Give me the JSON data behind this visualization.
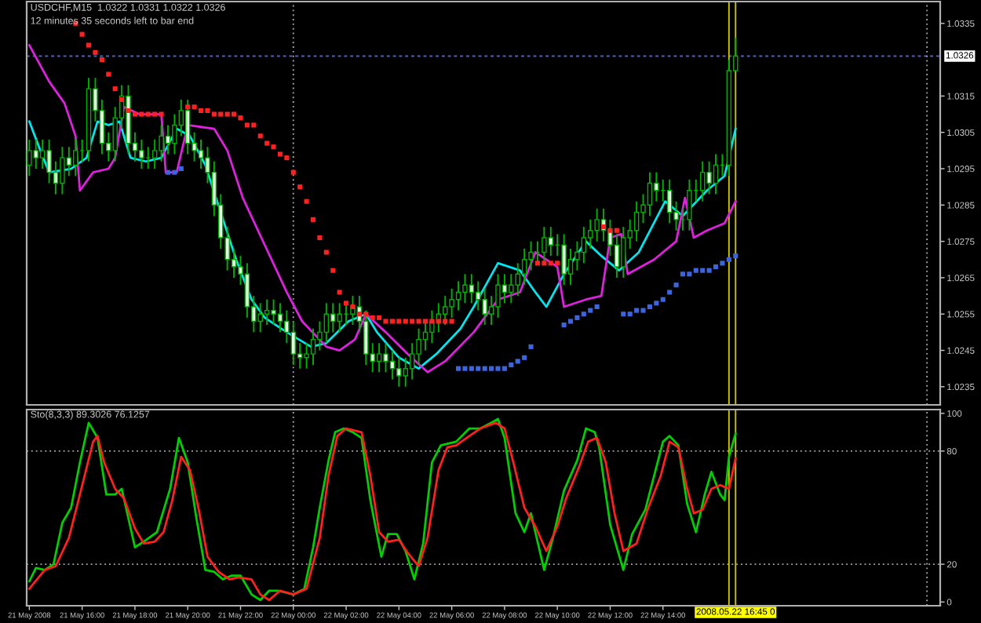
{
  "chart_data": [
    {
      "type": "candlestick",
      "title": "USDCHF,M15  1.0322 1.0331 1.0322 1.0326",
      "subtitle": "12 minutes 35 seconds left to bar end",
      "tick_labels": "y",
      "xlim": [
        "2008-05-21T13:54",
        "2008-05-23T00:30"
      ],
      "ylim": [
        1.023,
        1.0341
      ],
      "yticks": [
        1.0335,
        1.0315,
        1.0305,
        1.0295,
        1.0285,
        1.0275,
        1.0265,
        1.0255,
        1.0245,
        1.0235
      ],
      "color": "#00b000",
      "x": [
        "2008-05-21T14:00",
        "2008-05-21T14:15",
        "2008-05-21T14:30",
        "2008-05-21T14:45",
        "2008-05-21T15:00",
        "2008-05-21T15:15",
        "2008-05-21T15:30",
        "2008-05-21T15:45",
        "2008-05-21T16:00",
        "2008-05-21T16:15",
        "2008-05-21T16:30",
        "2008-05-21T16:45",
        "2008-05-21T17:00",
        "2008-05-21T17:15",
        "2008-05-21T17:30",
        "2008-05-21T17:45",
        "2008-05-21T18:00",
        "2008-05-21T18:15",
        "2008-05-21T18:30",
        "2008-05-21T18:45",
        "2008-05-21T19:00",
        "2008-05-21T19:15",
        "2008-05-21T19:30",
        "2008-05-21T19:45",
        "2008-05-21T20:00",
        "2008-05-21T20:15",
        "2008-05-21T20:30",
        "2008-05-21T20:45",
        "2008-05-21T21:00",
        "2008-05-21T21:15",
        "2008-05-21T21:30",
        "2008-05-21T21:45",
        "2008-05-21T22:00",
        "2008-05-21T22:15",
        "2008-05-21T22:30",
        "2008-05-21T22:45",
        "2008-05-21T23:00",
        "2008-05-21T23:15",
        "2008-05-21T23:30",
        "2008-05-21T23:45",
        "2008-05-22T00:00",
        "2008-05-22T00:15",
        "2008-05-22T00:30",
        "2008-05-22T00:45",
        "2008-05-22T01:00",
        "2008-05-22T01:15",
        "2008-05-22T01:30",
        "2008-05-22T01:45",
        "2008-05-22T02:00",
        "2008-05-22T02:15",
        "2008-05-22T02:30",
        "2008-05-22T02:45",
        "2008-05-22T03:00",
        "2008-05-22T03:15",
        "2008-05-22T03:30",
        "2008-05-22T03:45",
        "2008-05-22T04:00",
        "2008-05-22T04:15",
        "2008-05-22T04:30",
        "2008-05-22T04:45",
        "2008-05-22T05:00",
        "2008-05-22T05:15",
        "2008-05-22T05:30",
        "2008-05-22T05:45",
        "2008-05-22T06:00",
        "2008-05-22T06:15",
        "2008-05-22T06:30",
        "2008-05-22T06:45",
        "2008-05-22T07:00",
        "2008-05-22T07:15",
        "2008-05-22T07:30",
        "2008-05-22T07:45",
        "2008-05-22T08:00",
        "2008-05-22T08:15",
        "2008-05-22T08:30",
        "2008-05-22T08:45",
        "2008-05-22T09:00",
        "2008-05-22T09:15",
        "2008-05-22T09:30",
        "2008-05-22T09:45",
        "2008-05-22T10:00",
        "2008-05-22T10:15",
        "2008-05-22T10:30",
        "2008-05-22T10:45",
        "2008-05-22T11:00",
        "2008-05-22T11:15",
        "2008-05-22T11:30",
        "2008-05-22T11:45",
        "2008-05-22T12:00",
        "2008-05-22T12:15",
        "2008-05-22T12:30",
        "2008-05-22T12:45",
        "2008-05-22T13:00",
        "2008-05-22T13:15",
        "2008-05-22T13:30",
        "2008-05-22T13:45",
        "2008-05-22T14:00",
        "2008-05-22T14:15",
        "2008-05-22T14:30",
        "2008-05-22T14:45",
        "2008-05-22T15:00",
        "2008-05-22T15:15",
        "2008-05-22T15:30",
        "2008-05-22T15:45",
        "2008-05-22T16:00",
        "2008-05-22T16:15",
        "2008-05-22T16:30",
        "2008-05-22T16:45"
      ],
      "ohlc": [
        [
          1.0296,
          1.0303,
          1.0293,
          1.03
        ],
        [
          1.03,
          1.0303,
          1.0295,
          1.0298
        ],
        [
          1.0298,
          1.0303,
          1.0295,
          1.03
        ],
        [
          1.03,
          1.0303,
          1.0291,
          1.0294
        ],
        [
          1.0294,
          1.0297,
          1.0288,
          1.0291
        ],
        [
          1.0291,
          1.0301,
          1.0288,
          1.0298
        ],
        [
          1.0298,
          1.0301,
          1.0293,
          1.0296
        ],
        [
          1.0296,
          1.0303,
          1.0293,
          1.03
        ],
        [
          1.03,
          1.0303,
          1.0297,
          1.03
        ],
        [
          1.03,
          1.032,
          1.0297,
          1.0317
        ],
        [
          1.0317,
          1.032,
          1.0308,
          1.0311
        ],
        [
          1.0311,
          1.0314,
          1.0299,
          1.0302
        ],
        [
          1.0302,
          1.0305,
          1.0297,
          1.03
        ],
        [
          1.03,
          1.0312,
          1.0297,
          1.0309
        ],
        [
          1.0309,
          1.0318,
          1.0306,
          1.0315
        ],
        [
          1.0315,
          1.0318,
          1.0299,
          1.0302
        ],
        [
          1.0302,
          1.0305,
          1.0297,
          1.03
        ],
        [
          1.03,
          1.0303,
          1.0295,
          1.0298
        ],
        [
          1.0298,
          1.0301,
          1.0295,
          1.0298
        ],
        [
          1.0298,
          1.0303,
          1.0295,
          1.03
        ],
        [
          1.03,
          1.0307,
          1.0297,
          1.0304
        ],
        [
          1.0304,
          1.0307,
          1.0299,
          1.0302
        ],
        [
          1.0302,
          1.031,
          1.0299,
          1.0307
        ],
        [
          1.0307,
          1.0314,
          1.0304,
          1.0311
        ],
        [
          1.0311,
          1.0314,
          1.0299,
          1.0302
        ],
        [
          1.0302,
          1.0305,
          1.0297,
          1.03
        ],
        [
          1.03,
          1.0303,
          1.0295,
          1.0298
        ],
        [
          1.0298,
          1.0301,
          1.0291,
          1.0294
        ],
        [
          1.0294,
          1.0297,
          1.0282,
          1.0285
        ],
        [
          1.0285,
          1.0288,
          1.0273,
          1.0276
        ],
        [
          1.0276,
          1.0279,
          1.0267,
          1.027
        ],
        [
          1.027,
          1.0273,
          1.0265,
          1.0268
        ],
        [
          1.0268,
          1.0271,
          1.0263,
          1.0266
        ],
        [
          1.0266,
          1.0269,
          1.0254,
          1.0257
        ],
        [
          1.0257,
          1.026,
          1.025,
          1.0253
        ],
        [
          1.0253,
          1.0258,
          1.025,
          1.0255
        ],
        [
          1.0255,
          1.0259,
          1.0252,
          1.0256
        ],
        [
          1.0256,
          1.0259,
          1.0252,
          1.0255
        ],
        [
          1.0255,
          1.0258,
          1.025,
          1.0253
        ],
        [
          1.0253,
          1.0256,
          1.0247,
          1.025
        ],
        [
          1.025,
          1.0253,
          1.0241,
          1.0244
        ],
        [
          1.0244,
          1.0247,
          1.024,
          1.0243
        ],
        [
          1.0243,
          1.0247,
          1.024,
          1.0244
        ],
        [
          1.0244,
          1.0251,
          1.0241,
          1.0248
        ],
        [
          1.0248,
          1.0253,
          1.0245,
          1.025
        ],
        [
          1.025,
          1.0258,
          1.0247,
          1.0255
        ],
        [
          1.0255,
          1.0258,
          1.025,
          1.0253
        ],
        [
          1.0253,
          1.0258,
          1.025,
          1.0255
        ],
        [
          1.0255,
          1.0258,
          1.0252,
          1.0255
        ],
        [
          1.0255,
          1.026,
          1.0252,
          1.0257
        ],
        [
          1.0257,
          1.026,
          1.025,
          1.0253
        ],
        [
          1.0253,
          1.0256,
          1.0241,
          1.0244
        ],
        [
          1.0244,
          1.0247,
          1.0239,
          1.0242
        ],
        [
          1.0242,
          1.0247,
          1.0239,
          1.0244
        ],
        [
          1.0244,
          1.0247,
          1.0239,
          1.0242
        ],
        [
          1.0242,
          1.0245,
          1.0237,
          1.024
        ],
        [
          1.024,
          1.0243,
          1.0235,
          1.0238
        ],
        [
          1.0238,
          1.0243,
          1.0235,
          1.024
        ],
        [
          1.024,
          1.0247,
          1.0237,
          1.0244
        ],
        [
          1.0244,
          1.0251,
          1.0241,
          1.0248
        ],
        [
          1.0248,
          1.0253,
          1.0245,
          1.025
        ],
        [
          1.025,
          1.0256,
          1.0247,
          1.0253
        ],
        [
          1.0253,
          1.0258,
          1.025,
          1.0255
        ],
        [
          1.0255,
          1.026,
          1.0252,
          1.0257
        ],
        [
          1.0257,
          1.0262,
          1.0254,
          1.0259
        ],
        [
          1.0259,
          1.0264,
          1.0256,
          1.0261
        ],
        [
          1.0261,
          1.0266,
          1.0258,
          1.0263
        ],
        [
          1.0263,
          1.0266,
          1.0258,
          1.0261
        ],
        [
          1.0261,
          1.0264,
          1.0256,
          1.0259
        ],
        [
          1.0259,
          1.0262,
          1.0252,
          1.0255
        ],
        [
          1.0255,
          1.026,
          1.0252,
          1.0257
        ],
        [
          1.0257,
          1.0266,
          1.0254,
          1.0263
        ],
        [
          1.0263,
          1.0266,
          1.0258,
          1.0261
        ],
        [
          1.0261,
          1.0266,
          1.0258,
          1.0263
        ],
        [
          1.0263,
          1.0269,
          1.026,
          1.0266
        ],
        [
          1.0266,
          1.0273,
          1.0263,
          1.027
        ],
        [
          1.027,
          1.0275,
          1.0267,
          1.0272
        ],
        [
          1.0272,
          1.0275,
          1.0269,
          1.0272
        ],
        [
          1.0272,
          1.0279,
          1.0269,
          1.0276
        ],
        [
          1.0276,
          1.0279,
          1.0271,
          1.0274
        ],
        [
          1.0274,
          1.0277,
          1.0271,
          1.0274
        ],
        [
          1.0274,
          1.0277,
          1.0263,
          1.0266
        ],
        [
          1.0266,
          1.0273,
          1.0263,
          1.027
        ],
        [
          1.027,
          1.0275,
          1.0267,
          1.0272
        ],
        [
          1.0272,
          1.0279,
          1.0269,
          1.0276
        ],
        [
          1.0276,
          1.0281,
          1.0273,
          1.0278
        ],
        [
          1.0278,
          1.0284,
          1.0275,
          1.0281
        ],
        [
          1.0281,
          1.0284,
          1.0275,
          1.0278
        ],
        [
          1.0278,
          1.0281,
          1.0271,
          1.0274
        ],
        [
          1.0274,
          1.0277,
          1.0265,
          1.0268
        ],
        [
          1.0268,
          1.0279,
          1.0265,
          1.0276
        ],
        [
          1.0276,
          1.0281,
          1.0273,
          1.0278
        ],
        [
          1.0278,
          1.0286,
          1.0275,
          1.0283
        ],
        [
          1.0283,
          1.0288,
          1.028,
          1.0285
        ],
        [
          1.0285,
          1.0294,
          1.0282,
          1.0291
        ],
        [
          1.0291,
          1.0294,
          1.0286,
          1.0289
        ],
        [
          1.0289,
          1.0292,
          1.0286,
          1.0289
        ],
        [
          1.0289,
          1.0292,
          1.028,
          1.0283
        ],
        [
          1.0283,
          1.0286,
          1.0278,
          1.0281
        ],
        [
          1.0281,
          1.0284,
          1.0278,
          1.0281
        ],
        [
          1.0281,
          1.0292,
          1.0278,
          1.0289
        ],
        [
          1.0289,
          1.0292,
          1.0286,
          1.0289
        ],
        [
          1.0289,
          1.0297,
          1.0286,
          1.0294
        ],
        [
          1.0294,
          1.0297,
          1.0288,
          1.0291
        ],
        [
          1.0291,
          1.0299,
          1.0288,
          1.0296
        ],
        [
          1.0296,
          1.0299,
          1.0293,
          1.0296
        ],
        [
          1.0296,
          1.0325,
          1.0293,
          1.0322
        ],
        [
          1.0322,
          1.0331,
          1.0322,
          1.0326
        ]
      ],
      "colors": [
        "#000000",
        "#e0ffe0",
        "#000000",
        "#e0ffe0",
        "#e0ffe0",
        "#000000",
        "#e0ffe0",
        "#000000",
        "#00b000",
        "#000000",
        "#e0ffe0",
        "#e0ffe0",
        "#e0ffe0",
        "#000000",
        "#000000",
        "#e0ffe0",
        "#e0ffe0",
        "#e0ffe0",
        "#00b000",
        "#000000",
        "#000000",
        "#e0ffe0",
        "#000000",
        "#000000",
        "#e0ffe0",
        "#e0ffe0",
        "#e0ffe0",
        "#e0ffe0",
        "#e0ffe0",
        "#e0ffe0",
        "#e0ffe0",
        "#e0ffe0",
        "#e0ffe0",
        "#e0ffe0",
        "#e0ffe0",
        "#000000",
        "#000000",
        "#e0ffe0",
        "#e0ffe0",
        "#e0ffe0",
        "#e0ffe0",
        "#e0ffe0",
        "#000000",
        "#000000",
        "#000000",
        "#000000",
        "#e0ffe0",
        "#000000",
        "#00b000",
        "#000000",
        "#e0ffe0",
        "#e0ffe0",
        "#e0ffe0",
        "#000000",
        "#e0ffe0",
        "#e0ffe0",
        "#e0ffe0",
        "#000000",
        "#000000",
        "#000000",
        "#000000",
        "#000000",
        "#000000",
        "#000000",
        "#000000",
        "#000000",
        "#000000",
        "#e0ffe0",
        "#e0ffe0",
        "#e0ffe0",
        "#000000",
        "#000000",
        "#e0ffe0",
        "#000000",
        "#000000",
        "#000000",
        "#000000",
        "#00b000",
        "#000000",
        "#e0ffe0",
        "#00b000",
        "#e0ffe0",
        "#000000",
        "#000000",
        "#000000",
        "#000000",
        "#000000",
        "#e0ffe0",
        "#e0ffe0",
        "#e0ffe0",
        "#000000",
        "#000000",
        "#000000",
        "#000000",
        "#000000",
        "#e0ffe0",
        "#00b000",
        "#e0ffe0",
        "#e0ffe0",
        "#00b000",
        "#000000",
        "#00b000",
        "#000000",
        "#e0ffe0",
        "#000000",
        "#00b000",
        "#000000",
        "#000000"
      ],
      "series": [
        {
          "type": "line",
          "color": "#00e5ee",
          "x": [
            "2008-05-21T14:00",
            "2008-05-21T14:25",
            "2008-05-21T14:45",
            "2008-05-21T15:35",
            "2008-05-21T16:10",
            "2008-05-21T16:35",
            "2008-05-21T17:00",
            "2008-05-21T17:25",
            "2008-05-21T17:50",
            "2008-05-21T18:25",
            "2008-05-21T19:00",
            "2008-05-21T19:35",
            "2008-05-21T20:05",
            "2008-05-21T20:40",
            "2008-05-21T21:15",
            "2008-05-21T21:50",
            "2008-05-21T22:25",
            "2008-05-21T22:55",
            "2008-05-21T23:45",
            "2008-05-22T00:40",
            "2008-05-22T01:15",
            "2008-05-22T02:05",
            "2008-05-22T02:45",
            "2008-05-22T03:10",
            "2008-05-22T04:00",
            "2008-05-22T04:45",
            "2008-05-22T05:25",
            "2008-05-22T06:20",
            "2008-05-22T06:50",
            "2008-05-22T07:45",
            "2008-05-22T08:35",
            "2008-05-22T09:10",
            "2008-05-22T09:35",
            "2008-05-22T10:15",
            "2008-05-22T11:05",
            "2008-05-22T11:40",
            "2008-05-22T12:20",
            "2008-05-22T13:05",
            "2008-05-22T14:05",
            "2008-05-22T14:45",
            "2008-05-22T15:40",
            "2008-05-22T16:20",
            "2008-05-22T16:45"
          ],
          "values": [
            1.0308,
            1.03,
            1.0294,
            1.0295,
            1.0298,
            1.0308,
            1.0307,
            1.0308,
            1.0298,
            1.0297,
            1.0298,
            1.0306,
            1.0304,
            1.0296,
            1.0283,
            1.027,
            1.0259,
            1.0254,
            1.025,
            1.0246,
            1.0247,
            1.0253,
            1.0255,
            1.025,
            1.0243,
            1.024,
            1.0244,
            1.0251,
            1.0257,
            1.0269,
            1.0267,
            1.0261,
            1.0257,
            1.0266,
            1.0275,
            1.0271,
            1.0267,
            1.0272,
            1.0286,
            1.0282,
            1.0289,
            1.0293,
            1.0306
          ]
        },
        {
          "type": "line",
          "color": "#e020e0",
          "x": [
            "2008-05-21T14:00",
            "2008-05-21T14:45",
            "2008-05-21T15:20",
            "2008-05-21T15:45",
            "2008-05-21T15:55",
            "2008-05-21T16:25",
            "2008-05-21T17:00",
            "2008-05-21T17:15",
            "2008-05-21T17:35",
            "2008-05-21T18:10",
            "2008-05-21T19:00",
            "2008-05-21T19:10",
            "2008-05-21T19:35",
            "2008-05-21T20:00",
            "2008-05-21T21:00",
            "2008-05-21T21:30",
            "2008-05-21T22:05",
            "2008-05-21T22:55",
            "2008-05-21T23:45",
            "2008-05-22T00:20",
            "2008-05-22T01:15",
            "2008-05-22T01:45",
            "2008-05-22T02:20",
            "2008-05-22T02:45",
            "2008-05-22T03:30",
            "2008-05-22T04:20",
            "2008-05-22T05:05",
            "2008-05-22T05:45",
            "2008-05-22T06:50",
            "2008-05-22T07:45",
            "2008-05-22T08:35",
            "2008-05-22T09:10",
            "2008-05-22T10:00",
            "2008-05-22T10:15",
            "2008-05-22T11:05",
            "2008-05-22T11:40",
            "2008-05-22T12:00",
            "2008-05-22T12:25",
            "2008-05-22T12:40",
            "2008-05-22T13:40",
            "2008-05-22T14:30",
            "2008-05-22T14:50",
            "2008-05-22T15:10",
            "2008-05-22T15:40",
            "2008-05-22T16:20",
            "2008-05-22T16:45"
          ],
          "values": [
            1.0329,
            1.0319,
            1.0313,
            1.0304,
            1.0289,
            1.0294,
            1.0295,
            1.0298,
            1.0312,
            1.031,
            1.031,
            1.0294,
            1.0294,
            1.0307,
            1.0306,
            1.03,
            1.0287,
            1.0274,
            1.0261,
            1.0253,
            1.0246,
            1.0245,
            1.0248,
            1.0255,
            1.025,
            1.0244,
            1.0239,
            1.0242,
            1.025,
            1.0259,
            1.0261,
            1.0272,
            1.0268,
            1.0257,
            1.0259,
            1.026,
            1.0276,
            1.0277,
            1.0266,
            1.027,
            1.0275,
            1.0287,
            1.0276,
            1.0278,
            1.028,
            1.0286
          ]
        },
        {
          "type": "scatter",
          "marker": "square",
          "color": "#ff2020",
          "x": [
            "2008-05-21T15:45",
            "2008-05-21T16:00",
            "2008-05-21T16:15",
            "2008-05-21T16:30",
            "2008-05-21T16:45",
            "2008-05-21T17:00",
            "2008-05-21T17:15",
            "2008-05-21T17:30",
            "2008-05-21T17:45",
            "2008-05-21T18:00",
            "2008-05-21T18:15",
            "2008-05-21T18:30",
            "2008-05-21T18:45",
            "2008-05-21T19:00",
            "2008-05-21T20:00",
            "2008-05-21T20:15",
            "2008-05-21T20:30",
            "2008-05-21T20:45",
            "2008-05-21T21:00",
            "2008-05-21T21:15",
            "2008-05-21T21:30",
            "2008-05-21T21:45",
            "2008-05-21T22:00",
            "2008-05-21T22:15",
            "2008-05-21T22:30",
            "2008-05-21T22:45",
            "2008-05-21T23:00",
            "2008-05-21T23:15",
            "2008-05-21T23:30",
            "2008-05-21T23:45",
            "2008-05-22T00:00",
            "2008-05-22T00:15",
            "2008-05-22T00:30",
            "2008-05-22T00:45",
            "2008-05-22T01:00",
            "2008-05-22T01:15",
            "2008-05-22T01:30",
            "2008-05-22T01:45",
            "2008-05-22T02:00",
            "2008-05-22T02:15",
            "2008-05-22T02:30",
            "2008-05-22T02:45",
            "2008-05-22T03:00",
            "2008-05-22T03:15",
            "2008-05-22T03:30",
            "2008-05-22T03:45",
            "2008-05-22T04:00",
            "2008-05-22T04:15",
            "2008-05-22T04:30",
            "2008-05-22T04:45",
            "2008-05-22T05:00",
            "2008-05-22T05:15",
            "2008-05-22T05:30",
            "2008-05-22T05:45",
            "2008-05-22T06:00",
            "2008-05-22T09:15",
            "2008-05-22T09:30",
            "2008-05-22T09:45",
            "2008-05-22T10:00",
            "2008-05-22T11:45",
            "2008-05-22T12:00",
            "2008-05-22T12:15"
          ],
          "values": [
            1.0335,
            1.0332,
            1.0329,
            1.0327,
            1.0325,
            1.0321,
            1.0317,
            1.0314,
            1.0311,
            1.031,
            1.031,
            1.031,
            1.031,
            1.031,
            1.0312,
            1.0312,
            1.0311,
            1.0311,
            1.031,
            1.031,
            1.031,
            1.031,
            1.0309,
            1.0307,
            1.0307,
            1.0304,
            1.0302,
            1.0301,
            1.0299,
            1.0298,
            1.0294,
            1.029,
            1.0286,
            1.0281,
            1.0276,
            1.0272,
            1.0267,
            1.0261,
            1.0258,
            1.0257,
            1.0255,
            1.0255,
            1.0254,
            1.0254,
            1.0253,
            1.0253,
            1.0253,
            1.0253,
            1.0253,
            1.0253,
            1.0253,
            1.0253,
            1.0253,
            1.0253,
            1.0253,
            1.0269,
            1.0269,
            1.0269,
            1.0269,
            1.0279,
            1.0278,
            1.0278
          ]
        },
        {
          "type": "scatter",
          "marker": "square",
          "color": "#3c64dc",
          "x": [
            "2008-05-21T19:15",
            "2008-05-21T19:30",
            "2008-05-21T19:45",
            "2008-05-22T06:15",
            "2008-05-22T06:30",
            "2008-05-22T06:45",
            "2008-05-22T07:00",
            "2008-05-22T07:15",
            "2008-05-22T07:30",
            "2008-05-22T07:45",
            "2008-05-22T08:00",
            "2008-05-22T08:15",
            "2008-05-22T08:30",
            "2008-05-22T08:45",
            "2008-05-22T09:00",
            "2008-05-22T10:15",
            "2008-05-22T10:30",
            "2008-05-22T10:45",
            "2008-05-22T11:00",
            "2008-05-22T11:15",
            "2008-05-22T11:30",
            "2008-05-22T12:30",
            "2008-05-22T12:45",
            "2008-05-22T13:00",
            "2008-05-22T13:15",
            "2008-05-22T13:30",
            "2008-05-22T13:45",
            "2008-05-22T14:00",
            "2008-05-22T14:15",
            "2008-05-22T14:30",
            "2008-05-22T14:45",
            "2008-05-22T15:00",
            "2008-05-22T15:15",
            "2008-05-22T15:30",
            "2008-05-22T15:45",
            "2008-05-22T16:00",
            "2008-05-22T16:15",
            "2008-05-22T16:30",
            "2008-05-22T16:45"
          ],
          "values": [
            1.0294,
            1.0294,
            1.0295,
            1.024,
            1.024,
            1.024,
            1.024,
            1.024,
            1.024,
            1.024,
            1.024,
            1.0241,
            1.0242,
            1.0243,
            1.0246,
            1.0252,
            1.0253,
            1.0254,
            1.0255,
            1.0256,
            1.0257,
            1.0255,
            1.0255,
            1.0256,
            1.0256,
            1.0257,
            1.0258,
            1.0259,
            1.0261,
            1.0263,
            1.0266,
            1.0266,
            1.0267,
            1.0267,
            1.0267,
            1.0268,
            1.0269,
            1.027,
            1.0271
          ]
        }
      ],
      "ref_lines": [
        {
          "axis": "y",
          "value": 1.0326,
          "label": "1.0326",
          "color": "#5060c0",
          "line_style": "dashed"
        },
        {
          "axis": "x",
          "value": "2008-05-22T00:00",
          "color": "#a0a0a0",
          "line_style": "dotted"
        },
        {
          "axis": "x",
          "value": "2008-05-23T00:00",
          "color": "#a0a0a0",
          "line_style": "dotted"
        },
        {
          "axis": "x",
          "value": "2008-05-22T16:30",
          "color": "#c8c000",
          "line_style": "solid"
        },
        {
          "axis": "x",
          "value": "2008-05-22T16:45",
          "color": "#c8c000",
          "line_style": "solid"
        }
      ]
    },
    {
      "type": "line",
      "title": "Sto(8,3,3) 89.3026 76.1257",
      "xlim": [
        "2008-05-21T13:54",
        "2008-05-23T00:30"
      ],
      "ylim": [
        -2,
        102
      ],
      "yticks": [
        0,
        20,
        80,
        100
      ],
      "xticks": [
        {
          "value": "2008-05-21T14:00",
          "label": "21 May 2008"
        },
        {
          "value": "2008-05-21T16:00",
          "label": "21 May 16:00"
        },
        {
          "value": "2008-05-21T18:00",
          "label": "21 May 18:00"
        },
        {
          "value": "2008-05-21T20:00",
          "label": "21 May 20:00"
        },
        {
          "value": "2008-05-21T22:00",
          "label": "21 May 22:00"
        },
        {
          "value": "2008-05-22T00:00",
          "label": "22 May 00:00"
        },
        {
          "value": "2008-05-22T02:00",
          "label": "22 May 02:00"
        },
        {
          "value": "2008-05-22T04:00",
          "label": "22 May 04:00"
        },
        {
          "value": "2008-05-22T06:00",
          "label": "22 May 06:00"
        },
        {
          "value": "2008-05-22T08:00",
          "label": "22 May 08:00"
        },
        {
          "value": "2008-05-22T10:00",
          "label": "22 May 10:00"
        },
        {
          "value": "2008-05-22T12:00",
          "label": "22 May 12:00"
        },
        {
          "value": "2008-05-22T14:00",
          "label": "22 May 14:00"
        }
      ],
      "series": [
        {
          "color": "#00d000",
          "x": [
            "2008-05-21T14:00",
            "2008-05-21T14:15",
            "2008-05-21T14:35",
            "2008-05-21T14:55",
            "2008-05-21T15:15",
            "2008-05-21T15:35",
            "2008-05-21T15:55",
            "2008-05-21T16:15",
            "2008-05-21T16:35",
            "2008-05-21T16:55",
            "2008-05-21T17:15",
            "2008-05-21T17:30",
            "2008-05-21T18:00",
            "2008-05-21T18:20",
            "2008-05-21T18:50",
            "2008-05-21T19:20",
            "2008-05-21T19:40",
            "2008-05-21T20:00",
            "2008-05-21T20:20",
            "2008-05-21T20:40",
            "2008-05-21T21:00",
            "2008-05-21T21:20",
            "2008-05-21T21:40",
            "2008-05-21T22:00",
            "2008-05-21T22:25",
            "2008-05-21T22:45",
            "2008-05-21T23:05",
            "2008-05-21T23:25",
            "2008-05-22T00:00",
            "2008-05-22T00:25",
            "2008-05-22T00:45",
            "2008-05-22T01:00",
            "2008-05-22T01:20",
            "2008-05-22T01:35",
            "2008-05-22T01:55",
            "2008-05-22T02:15",
            "2008-05-22T02:35",
            "2008-05-22T02:55",
            "2008-05-22T03:20",
            "2008-05-22T03:35",
            "2008-05-22T03:55",
            "2008-05-22T04:15",
            "2008-05-22T04:35",
            "2008-05-22T04:55",
            "2008-05-22T05:15",
            "2008-05-22T05:35",
            "2008-05-22T06:10",
            "2008-05-22T06:40",
            "2008-05-22T07:05",
            "2008-05-22T07:30",
            "2008-05-22T07:45",
            "2008-05-22T08:00",
            "2008-05-22T08:25",
            "2008-05-22T08:45",
            "2008-05-22T09:00",
            "2008-05-22T09:30",
            "2008-05-22T09:50",
            "2008-05-22T10:15",
            "2008-05-22T10:45",
            "2008-05-22T11:05",
            "2008-05-22T11:25",
            "2008-05-22T11:35",
            "2008-05-22T12:00",
            "2008-05-22T12:30",
            "2008-05-22T12:50",
            "2008-05-22T13:20",
            "2008-05-22T13:40",
            "2008-05-22T14:00",
            "2008-05-22T14:15",
            "2008-05-22T14:35",
            "2008-05-22T14:55",
            "2008-05-22T15:15",
            "2008-05-22T15:35",
            "2008-05-22T15:50",
            "2008-05-22T16:10",
            "2008-05-22T16:20",
            "2008-05-22T16:30",
            "2008-05-22T16:45"
          ],
          "values": [
            11,
            18,
            17,
            20,
            42,
            50,
            74,
            95,
            87,
            57,
            57,
            60,
            29,
            32,
            37,
            60,
            87,
            74,
            44,
            17,
            16,
            12,
            14,
            14,
            4,
            1,
            6,
            6,
            4,
            7,
            29,
            50,
            75,
            90,
            92,
            90,
            87,
            54,
            24,
            36,
            36,
            27,
            12,
            31,
            74,
            83,
            85,
            92,
            92,
            95,
            97,
            87,
            47,
            37,
            47,
            17,
            34,
            59,
            75,
            92,
            90,
            82,
            41,
            17,
            36,
            49,
            67,
            85,
            88,
            83,
            52,
            37,
            57,
            69,
            57,
            54,
            77,
            89.3026
          ]
        },
        {
          "color": "#ff2020",
          "x": [
            "2008-05-21T14:00",
            "2008-05-21T14:35",
            "2008-05-21T15:00",
            "2008-05-21T15:30",
            "2008-05-21T15:55",
            "2008-05-21T16:25",
            "2008-05-21T16:35",
            "2008-05-21T16:50",
            "2008-05-21T17:15",
            "2008-05-21T17:35",
            "2008-05-21T18:00",
            "2008-05-21T18:20",
            "2008-05-21T18:45",
            "2008-05-21T19:05",
            "2008-05-21T19:25",
            "2008-05-21T19:45",
            "2008-05-21T20:05",
            "2008-05-21T20:25",
            "2008-05-21T20:45",
            "2008-05-21T21:10",
            "2008-05-21T21:35",
            "2008-05-21T21:55",
            "2008-05-21T22:25",
            "2008-05-21T22:45",
            "2008-05-21T23:05",
            "2008-05-21T23:30",
            "2008-05-22T00:00",
            "2008-05-22T00:30",
            "2008-05-22T01:00",
            "2008-05-22T01:20",
            "2008-05-22T01:40",
            "2008-05-22T02:00",
            "2008-05-22T02:35",
            "2008-05-22T02:55",
            "2008-05-22T03:15",
            "2008-05-22T03:35",
            "2008-05-22T04:00",
            "2008-05-22T04:20",
            "2008-05-22T04:45",
            "2008-05-22T05:05",
            "2008-05-22T05:30",
            "2008-05-22T05:50",
            "2008-05-22T06:10",
            "2008-05-22T06:40",
            "2008-05-22T07:05",
            "2008-05-22T07:40",
            "2008-05-22T08:00",
            "2008-05-22T08:20",
            "2008-05-22T08:45",
            "2008-05-22T09:10",
            "2008-05-22T09:35",
            "2008-05-22T10:00",
            "2008-05-22T10:20",
            "2008-05-22T10:50",
            "2008-05-22T11:10",
            "2008-05-22T11:30",
            "2008-05-22T11:50",
            "2008-05-22T12:10",
            "2008-05-22T12:30",
            "2008-05-22T13:00",
            "2008-05-22T13:25",
            "2008-05-22T13:55",
            "2008-05-22T14:15",
            "2008-05-22T14:35",
            "2008-05-22T14:55",
            "2008-05-22T15:10",
            "2008-05-22T15:30",
            "2008-05-22T15:50",
            "2008-05-22T16:10",
            "2008-05-22T16:30",
            "2008-05-22T16:45"
          ],
          "values": [
            7,
            17,
            19,
            34,
            57,
            85,
            88,
            74,
            60,
            55,
            39,
            31,
            32,
            37,
            54,
            77,
            70,
            49,
            24,
            16,
            12,
            13,
            12,
            4,
            1,
            6,
            4,
            7,
            34,
            67,
            88,
            92,
            90,
            67,
            37,
            32,
            33,
            26,
            19,
            34,
            70,
            82,
            83,
            88,
            92,
            95,
            92,
            74,
            50,
            40,
            27,
            40,
            55,
            72,
            85,
            87,
            74,
            47,
            27,
            31,
            49,
            67,
            85,
            82,
            60,
            47,
            49,
            60,
            62,
            60,
            76.1257
          ]
        }
      ],
      "ref_lines": [
        {
          "axis": "y",
          "value": 80,
          "color": "#a0a0a0",
          "line_style": "dotted"
        },
        {
          "axis": "y",
          "value": 20,
          "color": "#a0a0a0",
          "line_style": "dotted"
        },
        {
          "axis": "x",
          "value": "2008-05-22T00:00",
          "color": "#a0a0a0",
          "line_style": "dotted"
        },
        {
          "axis": "x",
          "value": "2008-05-23T00:00",
          "color": "#a0a0a0",
          "line_style": "dotted"
        },
        {
          "axis": "x",
          "value": "2008-05-22T16:30",
          "color": "#c8c000",
          "line_style": "solid"
        },
        {
          "axis": "x",
          "value": "2008-05-22T16:45",
          "label": "2008.05.22 16:45 0",
          "color": "#c8c000",
          "line_style": "solid"
        }
      ]
    }
  ]
}
